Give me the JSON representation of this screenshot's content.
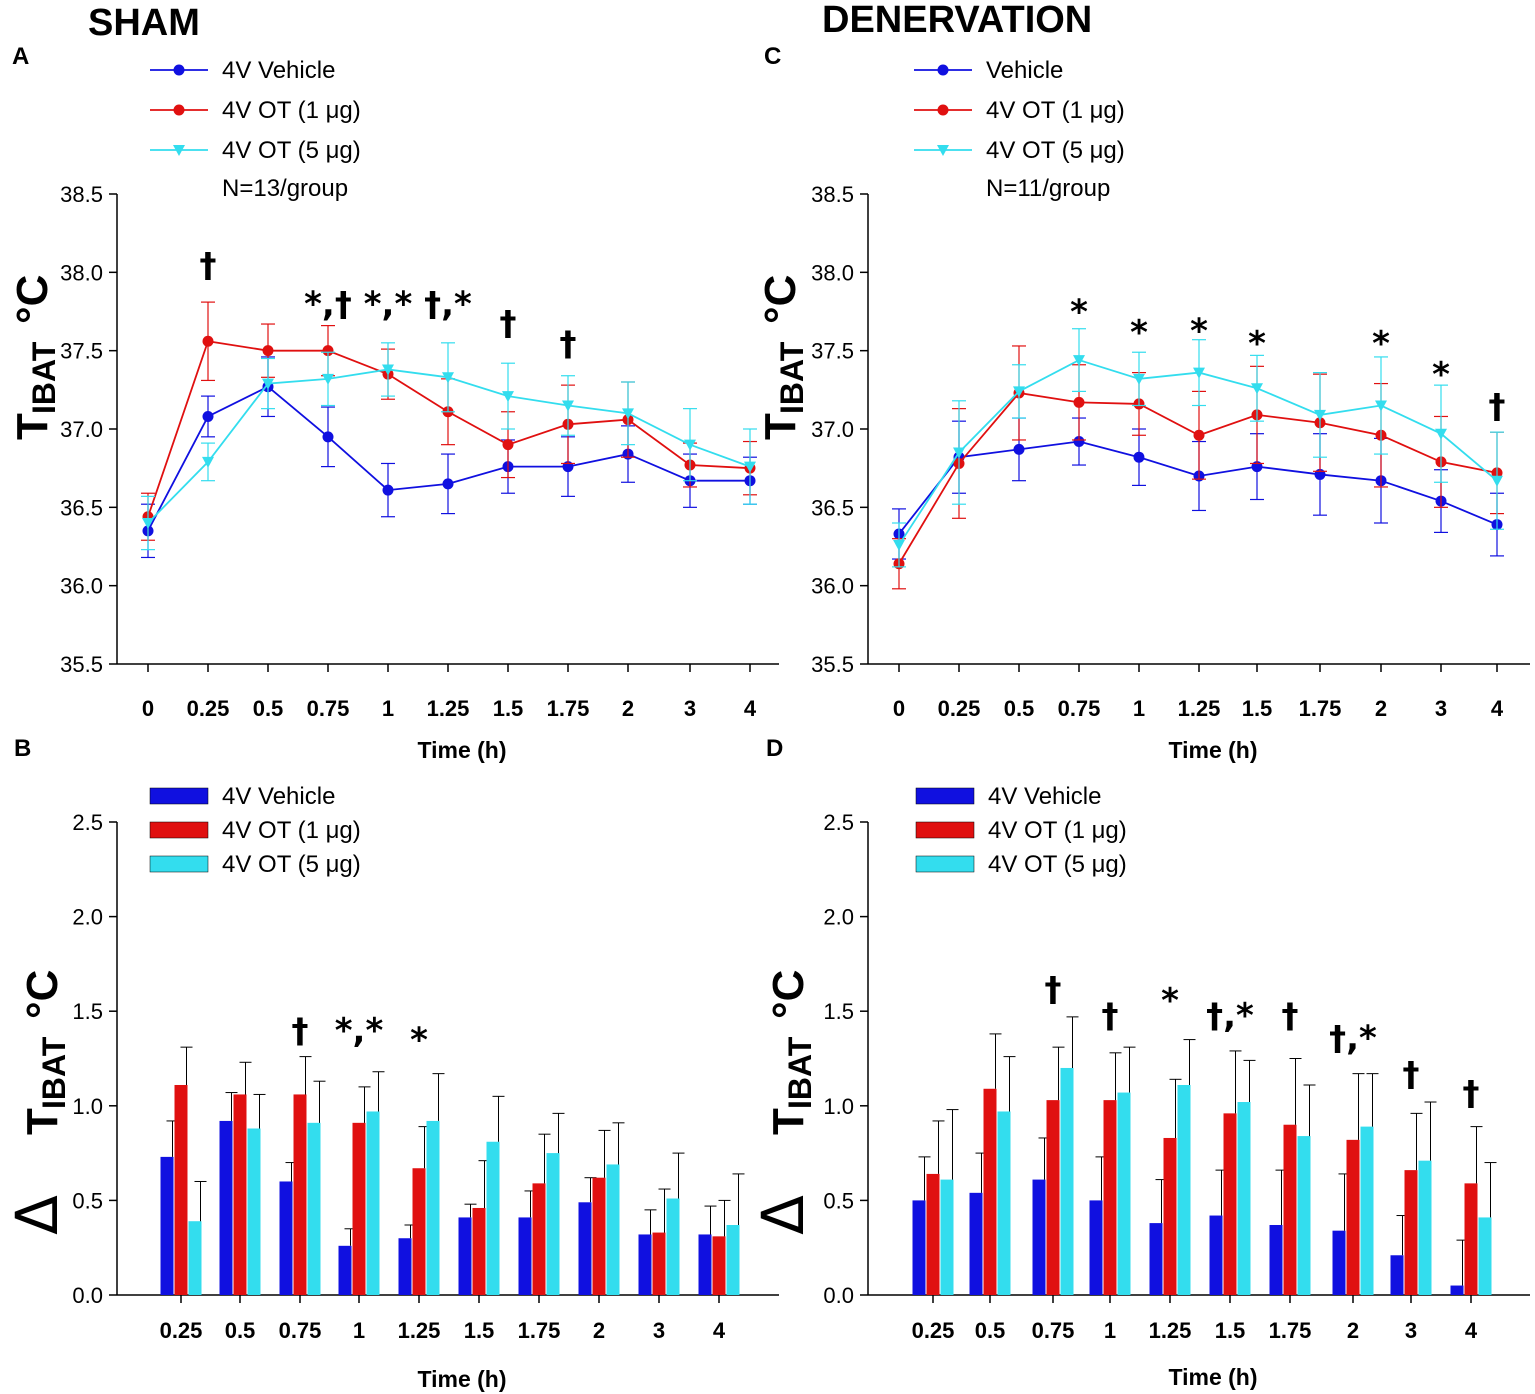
{
  "titles": {
    "left": "SHAM",
    "right": "DENERVATION"
  },
  "colors": {
    "vehicle": "#1010e0",
    "ot1": "#e01010",
    "ot5": "#33ddee",
    "axis": "#000000"
  },
  "chart_data": [
    {
      "id": "A",
      "panel_letter": "A",
      "type": "line",
      "x": [
        "0",
        "0.25",
        "0.5",
        "0.75",
        "1",
        "1.25",
        "1.5",
        "1.75",
        "2",
        "3",
        "4"
      ],
      "ylim": [
        35.5,
        38.5
      ],
      "yticks": [
        "35.5",
        "36.0",
        "36.5",
        "37.0",
        "37.5",
        "38.0",
        "38.5"
      ],
      "xlabel": "Time (h)",
      "ylabel": "T",
      "ylabel_sub": "IBAT",
      "ylabel_unit": "°C",
      "note": "N=13/group",
      "series": [
        {
          "name": "4V Vehicle",
          "color": "#1010e0",
          "marker": "circle",
          "values": [
            36.35,
            37.08,
            37.27,
            36.95,
            36.61,
            36.65,
            36.76,
            36.76,
            36.84,
            36.67,
            36.67
          ],
          "errors": [
            0.17,
            0.13,
            0.19,
            0.19,
            0.17,
            0.19,
            0.17,
            0.19,
            0.18,
            0.17,
            0.15
          ]
        },
        {
          "name": "4V OT (1 μg)",
          "color": "#e01010",
          "marker": "circle",
          "values": [
            36.44,
            37.56,
            37.5,
            37.5,
            37.35,
            37.11,
            36.9,
            37.03,
            37.06,
            36.77,
            36.75
          ],
          "errors": [
            0.15,
            0.25,
            0.17,
            0.16,
            0.16,
            0.21,
            0.21,
            0.25,
            0.24,
            0.14,
            0.17
          ]
        },
        {
          "name": "4V OT (5 μg)",
          "color": "#33ddee",
          "marker": "triangle",
          "values": [
            36.4,
            36.79,
            37.29,
            37.32,
            37.38,
            37.33,
            37.21,
            37.15,
            37.1,
            36.9,
            36.76
          ],
          "errors": [
            0.17,
            0.12,
            0.16,
            0.17,
            0.17,
            0.22,
            0.21,
            0.19,
            0.2,
            0.23,
            0.24
          ]
        }
      ],
      "annotations": [
        {
          "x": "0.25",
          "y": 38.05,
          "text": "†"
        },
        {
          "x": "0.75",
          "y": 37.8,
          "text": "*,†"
        },
        {
          "x": "1",
          "y": 37.8,
          "text": "*,*"
        },
        {
          "x": "1.25",
          "y": 37.8,
          "text": "†,*"
        },
        {
          "x": "1.5",
          "y": 37.68,
          "text": "†"
        },
        {
          "x": "1.75",
          "y": 37.55,
          "text": "†"
        }
      ]
    },
    {
      "id": "C",
      "panel_letter": "C",
      "type": "line",
      "x": [
        "0",
        "0.25",
        "0.5",
        "0.75",
        "1",
        "1.25",
        "1.5",
        "1.75",
        "2",
        "3",
        "4"
      ],
      "ylim": [
        35.5,
        38.5
      ],
      "yticks": [
        "35.5",
        "36.0",
        "36.5",
        "37.0",
        "37.5",
        "38.0",
        "38.5"
      ],
      "xlabel": "Time (h)",
      "ylabel": "T",
      "ylabel_sub": "IBAT",
      "ylabel_unit": "°C",
      "note": "N=11/group",
      "series": [
        {
          "name": "Vehicle",
          "color": "#1010e0",
          "marker": "circle",
          "values": [
            36.33,
            36.82,
            36.87,
            36.92,
            36.82,
            36.7,
            36.76,
            36.71,
            36.67,
            36.54,
            36.39
          ],
          "errors": [
            0.16,
            0.23,
            0.2,
            0.15,
            0.18,
            0.22,
            0.21,
            0.26,
            0.27,
            0.2,
            0.2
          ]
        },
        {
          "name": "4V OT (1 μg)",
          "color": "#e01010",
          "marker": "circle",
          "values": [
            36.14,
            36.78,
            37.23,
            37.17,
            37.16,
            36.96,
            37.09,
            37.04,
            36.96,
            36.79,
            36.72
          ],
          "errors": [
            0.16,
            0.35,
            0.3,
            0.24,
            0.2,
            0.28,
            0.31,
            0.31,
            0.33,
            0.29,
            0.26
          ]
        },
        {
          "name": "4V OT (5 μg)",
          "color": "#33ddee",
          "marker": "triangle",
          "values": [
            36.26,
            36.85,
            37.24,
            37.44,
            37.32,
            37.36,
            37.26,
            37.09,
            37.15,
            36.97,
            36.67
          ],
          "errors": [
            0.14,
            0.33,
            0.17,
            0.2,
            0.17,
            0.21,
            0.21,
            0.27,
            0.31,
            0.31,
            0.31
          ]
        }
      ],
      "annotations": [
        {
          "x": "0.75",
          "y": 37.75,
          "text": "*"
        },
        {
          "x": "1",
          "y": 37.62,
          "text": "*"
        },
        {
          "x": "1.25",
          "y": 37.63,
          "text": "*"
        },
        {
          "x": "1.5",
          "y": 37.55,
          "text": "*"
        },
        {
          "x": "2",
          "y": 37.55,
          "text": "*"
        },
        {
          "x": "3",
          "y": 37.35,
          "text": "*"
        },
        {
          "x": "4",
          "y": 37.15,
          "text": "†"
        }
      ]
    },
    {
      "id": "B",
      "panel_letter": "B",
      "type": "bar",
      "categories": [
        "0.25",
        "0.5",
        "0.75",
        "1",
        "1.25",
        "1.5",
        "1.75",
        "2",
        "3",
        "4"
      ],
      "ylim": [
        0,
        2.5
      ],
      "yticks": [
        "0.0",
        "0.5",
        "1.0",
        "1.5",
        "2.0",
        "2.5"
      ],
      "xlabel": "Time (h)",
      "ylabel": "T",
      "ylabel_sub": "IBAT",
      "ylabel_unit": "°C",
      "series": [
        {
          "name": "4V Vehicle",
          "color": "#1010e0",
          "values": [
            0.73,
            0.92,
            0.6,
            0.26,
            0.3,
            0.41,
            0.41,
            0.49,
            0.32,
            0.32
          ],
          "errors": [
            0.19,
            0.15,
            0.1,
            0.09,
            0.07,
            0.07,
            0.14,
            0.13,
            0.13,
            0.15
          ]
        },
        {
          "name": "4V OT (1 μg)",
          "color": "#e01010",
          "values": [
            1.11,
            1.06,
            1.06,
            0.91,
            0.67,
            0.46,
            0.59,
            0.62,
            0.33,
            0.31
          ],
          "errors": [
            0.2,
            0.17,
            0.2,
            0.19,
            0.22,
            0.25,
            0.26,
            0.25,
            0.23,
            0.19
          ]
        },
        {
          "name": "4V OT (5 μg)",
          "color": "#33ddee",
          "values": [
            0.39,
            0.88,
            0.91,
            0.97,
            0.92,
            0.81,
            0.75,
            0.69,
            0.51,
            0.37
          ],
          "errors": [
            0.21,
            0.18,
            0.22,
            0.21,
            0.25,
            0.24,
            0.21,
            0.22,
            0.24,
            0.27
          ]
        }
      ],
      "annotations": [
        {
          "x": "0.75",
          "y": 1.4,
          "text": "†"
        },
        {
          "x": "1",
          "y": 1.4,
          "text": "*,*"
        },
        {
          "x": "1.25",
          "y": 1.35,
          "text": "*"
        }
      ]
    },
    {
      "id": "D",
      "panel_letter": "D",
      "type": "bar",
      "categories": [
        "0.25",
        "0.5",
        "0.75",
        "1",
        "1.25",
        "1.5",
        "1.75",
        "2",
        "3",
        "4"
      ],
      "ylim": [
        0,
        2.5
      ],
      "yticks": [
        "0.0",
        "0.5",
        "1.0",
        "1.5",
        "2.0",
        "2.5"
      ],
      "xlabel": "Time (h)",
      "ylabel": "T",
      "ylabel_sub": "IBAT",
      "ylabel_unit": "°C",
      "series": [
        {
          "name": "4V Vehicle",
          "color": "#1010e0",
          "values": [
            0.5,
            0.54,
            0.61,
            0.5,
            0.38,
            0.42,
            0.37,
            0.34,
            0.21,
            0.05
          ],
          "errors": [
            0.23,
            0.21,
            0.22,
            0.23,
            0.23,
            0.24,
            0.29,
            0.3,
            0.21,
            0.24
          ]
        },
        {
          "name": "4V OT (1 μg)",
          "color": "#e01010",
          "values": [
            0.64,
            1.09,
            1.03,
            1.03,
            0.83,
            0.96,
            0.9,
            0.82,
            0.66,
            0.59
          ],
          "errors": [
            0.28,
            0.29,
            0.28,
            0.25,
            0.31,
            0.33,
            0.35,
            0.35,
            0.3,
            0.3
          ]
        },
        {
          "name": "4V OT (5 μg)",
          "color": "#33ddee",
          "values": [
            0.61,
            0.97,
            1.2,
            1.07,
            1.11,
            1.02,
            0.84,
            0.89,
            0.71,
            0.41
          ],
          "errors": [
            0.37,
            0.29,
            0.27,
            0.24,
            0.24,
            0.22,
            0.27,
            0.28,
            0.31,
            0.29
          ]
        }
      ],
      "annotations": [
        {
          "x": "0.75",
          "y": 1.62,
          "text": "†"
        },
        {
          "x": "1",
          "y": 1.48,
          "text": "†"
        },
        {
          "x": "1.25",
          "y": 1.56,
          "text": "*"
        },
        {
          "x": "1.5",
          "y": 1.48,
          "text": "†,*"
        },
        {
          "x": "1.75",
          "y": 1.48,
          "text": "†"
        },
        {
          "x": "2",
          "y": 1.36,
          "text": "†,*"
        },
        {
          "x": "3",
          "y": 1.17,
          "text": "†"
        },
        {
          "x": "4",
          "y": 1.07,
          "text": "†"
        }
      ]
    }
  ]
}
